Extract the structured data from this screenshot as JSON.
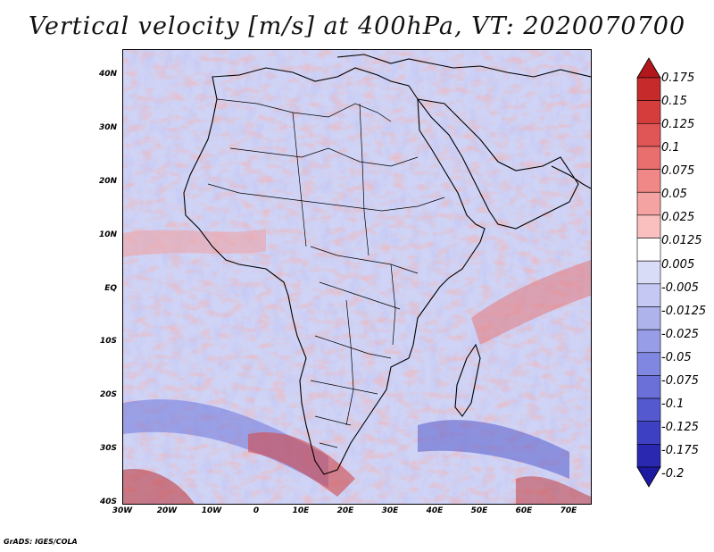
{
  "title": "Vertical velocity [m/s] at 400hPa, VT: 2020070700",
  "footer": "GrADS: IGES/COLA",
  "map": {
    "lon_range": [
      -30,
      75
    ],
    "lat_range": [
      -40,
      45
    ],
    "lon_ticks": [
      "30W",
      "20W",
      "10W",
      "0",
      "10E",
      "20E",
      "30E",
      "40E",
      "50E",
      "60E",
      "70E"
    ],
    "lat_ticks": [
      "40N",
      "30N",
      "20N",
      "10N",
      "EQ",
      "10S",
      "20S",
      "30S",
      "40S"
    ],
    "field": "vertical velocity at 400hPa"
  },
  "colorbar": {
    "labels": [
      "0.175",
      "0.15",
      "0.125",
      "0.1",
      "0.075",
      "0.05",
      "0.025",
      "0.0125",
      "0.005",
      "-0.005",
      "-0.0125",
      "-0.025",
      "-0.05",
      "-0.075",
      "-0.1",
      "-0.125",
      "-0.175",
      "-0.2"
    ],
    "colors": [
      "#b2181b",
      "#c62a2a",
      "#d53d3d",
      "#e05555",
      "#e96e6e",
      "#f08888",
      "#f5a2a2",
      "#fabfbf",
      "#ffffff",
      "#d9dcf7",
      "#c4c8f2",
      "#aeb3ec",
      "#979de6",
      "#8087e0",
      "#6a70d8",
      "#5459cf",
      "#3d40c2",
      "#2a28b0",
      "#1c1aa0"
    ]
  }
}
